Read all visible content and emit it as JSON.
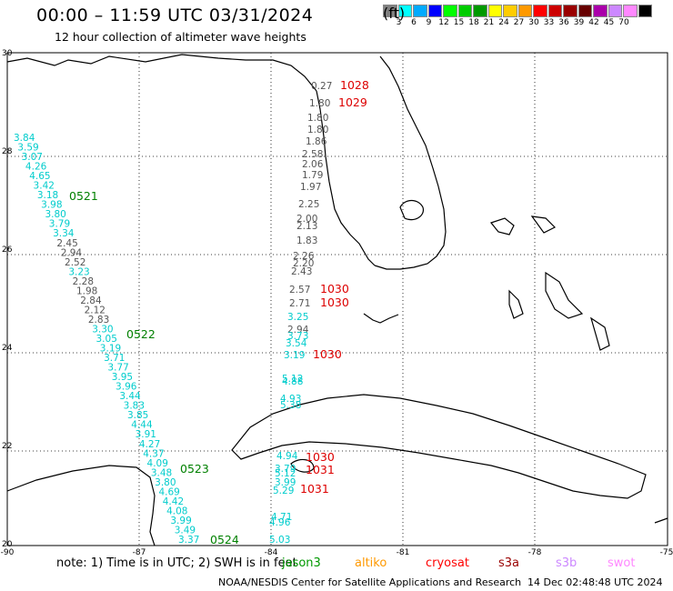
{
  "title": "00:00 – 11:59 UTC 03/31/2024",
  "subtitle": "12 hour collection of altimeter wave heights",
  "legend": {
    "colors": [
      "#808080",
      "#00ffff",
      "#00aaff",
      "#0000ff",
      "#00ff00",
      "#00cc00",
      "#009900",
      "#ffff00",
      "#ffcc00",
      "#ff9900",
      "#ff0000",
      "#cc0000",
      "#990000",
      "#660000",
      "#aa00aa",
      "#cc88ff",
      "#ff88ff",
      "#000000"
    ],
    "labels": [
      "3",
      "6",
      "9",
      "12",
      "15",
      "18",
      "21",
      "24",
      "27",
      "30",
      "33",
      "36",
      "39",
      "42",
      "45",
      "70"
    ],
    "unit": "(ft)"
  },
  "lat_labels": [
    "30",
    "28",
    "26",
    "24",
    "22",
    "20"
  ],
  "lon_labels": [
    "-90",
    "-87",
    "-84",
    "-81",
    "-78",
    "-75"
  ],
  "track_labels": [
    {
      "t": "0521",
      "c": "#008000"
    },
    {
      "t": "0522",
      "c": "#008000"
    },
    {
      "t": "0523",
      "c": "#008000"
    },
    {
      "t": "0524",
      "c": "#008000"
    },
    {
      "t": "1028",
      "c": "#dd0000"
    },
    {
      "t": "1029",
      "c": "#dd0000"
    },
    {
      "t": "1030",
      "c": "#dd0000"
    },
    {
      "t": "1030",
      "c": "#dd0000"
    },
    {
      "t": "1030",
      "c": "#dd0000"
    },
    {
      "t": "1030",
      "c": "#dd0000"
    },
    {
      "t": "1031",
      "c": "#dd0000"
    },
    {
      "t": "1031",
      "c": "#dd0000"
    }
  ],
  "west_track": [
    {
      "v": "3.84",
      "c": "c"
    },
    {
      "v": "3.59",
      "c": "c"
    },
    {
      "v": "3.07",
      "c": "c"
    },
    {
      "v": "4.26",
      "c": "c"
    },
    {
      "v": "4.65",
      "c": "c"
    },
    {
      "v": "3.42",
      "c": "c"
    },
    {
      "v": "3.18",
      "c": "c"
    },
    {
      "v": "3.98",
      "c": "c"
    },
    {
      "v": "3.80",
      "c": "c"
    },
    {
      "v": "3.79",
      "c": "c"
    },
    {
      "v": "3.34",
      "c": "c"
    },
    {
      "v": "2.45",
      "c": "g"
    },
    {
      "v": "2.94",
      "c": "g"
    },
    {
      "v": "2.52",
      "c": "g"
    },
    {
      "v": "3.23",
      "c": "c"
    },
    {
      "v": "2.28",
      "c": "g"
    },
    {
      "v": "1.98",
      "c": "g"
    },
    {
      "v": "2.84",
      "c": "g"
    },
    {
      "v": "2.12",
      "c": "g"
    },
    {
      "v": "2.83",
      "c": "g"
    },
    {
      "v": "3.30",
      "c": "c"
    },
    {
      "v": "3.05",
      "c": "c"
    },
    {
      "v": "3.19",
      "c": "c"
    },
    {
      "v": "3.71",
      "c": "c"
    },
    {
      "v": "3.77",
      "c": "c"
    },
    {
      "v": "3.95",
      "c": "c"
    },
    {
      "v": "3.96",
      "c": "c"
    },
    {
      "v": "3.44",
      "c": "c"
    },
    {
      "v": "3.83",
      "c": "c"
    },
    {
      "v": "3.85",
      "c": "c"
    },
    {
      "v": "4.44",
      "c": "c"
    },
    {
      "v": "3.91",
      "c": "c"
    },
    {
      "v": "4.27",
      "c": "c"
    },
    {
      "v": "4.37",
      "c": "c"
    },
    {
      "v": "4.09",
      "c": "c"
    },
    {
      "v": "3.48",
      "c": "c"
    },
    {
      "v": "3.80",
      "c": "c"
    },
    {
      "v": "4.69",
      "c": "c"
    },
    {
      "v": "4.42",
      "c": "c"
    },
    {
      "v": "4.08",
      "c": "c"
    },
    {
      "v": "3.99",
      "c": "c"
    },
    {
      "v": "3.49",
      "c": "c"
    },
    {
      "v": "3.37",
      "c": "c"
    }
  ],
  "east_track": [
    {
      "v": "0.27",
      "c": "g"
    },
    {
      "v": "1.80",
      "c": "g"
    },
    {
      "v": "1.80",
      "c": "g"
    },
    {
      "v": "1.80",
      "c": "g"
    },
    {
      "v": "1.86",
      "c": "g"
    },
    {
      "v": "2.58",
      "c": "g"
    },
    {
      "v": "2.06",
      "c": "g"
    },
    {
      "v": "1.79",
      "c": "g"
    },
    {
      "v": "1.97",
      "c": "g"
    },
    {
      "v": "2.25",
      "c": "g"
    },
    {
      "v": "2.00",
      "c": "g"
    },
    {
      "v": "2.13",
      "c": "g"
    },
    {
      "v": "1.83",
      "c": "g"
    },
    {
      "v": "2.26",
      "c": "g"
    },
    {
      "v": "2.20",
      "c": "g"
    },
    {
      "v": "2.43",
      "c": "g"
    },
    {
      "v": "2.57",
      "c": "g"
    },
    {
      "v": "2.71",
      "c": "g"
    },
    {
      "v": "3.25",
      "c": "c"
    },
    {
      "v": "2.94",
      "c": "g"
    },
    {
      "v": "3.73",
      "c": "c"
    },
    {
      "v": "3.54",
      "c": "c"
    },
    {
      "v": "3.19",
      "c": "c"
    },
    {
      "v": "5.12",
      "c": "c"
    },
    {
      "v": "4.88",
      "c": "c"
    },
    {
      "v": "4.93",
      "c": "c"
    },
    {
      "v": "5.38",
      "c": "c"
    },
    {
      "v": "4.94",
      "c": "c"
    },
    {
      "v": "3.79",
      "c": "c"
    },
    {
      "v": "5.12",
      "c": "c"
    },
    {
      "v": "3.99",
      "c": "c"
    },
    {
      "v": "5.29",
      "c": "c"
    },
    {
      "v": "4.71",
      "c": "c"
    },
    {
      "v": "4.96",
      "c": "c"
    },
    {
      "v": "5.03",
      "c": "c"
    }
  ],
  "note": "note: 1) Time is in UTC; 2) SWH is in feet",
  "satellites": [
    {
      "name": "jason3",
      "color": "#009900"
    },
    {
      "name": "altiko",
      "color": "#ff9900"
    },
    {
      "name": "cryosat",
      "color": "#ff0000"
    },
    {
      "name": "s3a",
      "color": "#990000"
    },
    {
      "name": "s3b",
      "color": "#cc88ff"
    },
    {
      "name": "swot",
      "color": "#ff88ff"
    }
  ],
  "credit": "NOAA/NESDIS Center for Satellite Applications and Research",
  "timestamp": "14 Dec 02:48:48 UTC 2024"
}
